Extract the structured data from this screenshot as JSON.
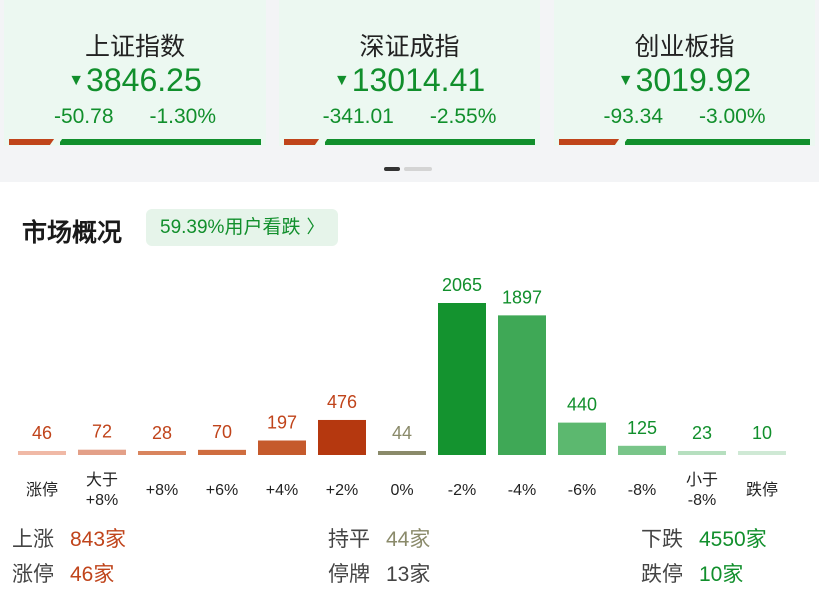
{
  "indices": [
    {
      "name": "上证指数",
      "value": "3846.25",
      "change": "-50.78",
      "pct": "-1.30%",
      "up_share": 0.18
    },
    {
      "name": "深证成指",
      "value": "13014.41",
      "change": "-341.01",
      "pct": "-2.55%",
      "up_share": 0.14
    },
    {
      "name": "创业板指",
      "value": "3019.92",
      "change": "-93.34",
      "pct": "-3.00%",
      "up_share": 0.24
    }
  ],
  "arrow_glyph": "▼",
  "market": {
    "title": "市场概况",
    "sentiment": "59.39%用户看跌",
    "chevron": "〉"
  },
  "chart_data": {
    "type": "bar",
    "categories": [
      "涨停",
      "大于\n+8%",
      "+8%",
      "+6%",
      "+4%",
      "+2%",
      "0%",
      "-2%",
      "-4%",
      "-6%",
      "-8%",
      "小于\n-8%",
      "跌停"
    ],
    "values": [
      46,
      72,
      28,
      70,
      197,
      476,
      44,
      2065,
      1897,
      440,
      125,
      23,
      10
    ],
    "value_labels": [
      "46",
      "72",
      "28",
      "70",
      "197",
      "476",
      "44",
      "2065",
      "1897",
      "440",
      "125",
      "23",
      "10"
    ],
    "bar_colors": [
      "#f0b9a6",
      "#e3a088",
      "#d9855e",
      "#cf6d3f",
      "#c55a2c",
      "#b5380f",
      "#8a8a6a",
      "#14932f",
      "#3fa856",
      "#5cb86f",
      "#79c589",
      "#b6dfbf",
      "#cfe9d5"
    ],
    "label_colors": [
      "#c0441b",
      "#c0441b",
      "#c0441b",
      "#c0441b",
      "#c0441b",
      "#c0441b",
      "#8a8a6a",
      "#118f2c",
      "#118f2c",
      "#118f2c",
      "#118f2c",
      "#118f2c",
      "#118f2c"
    ],
    "ylim": [
      0,
      2065
    ]
  },
  "stats": {
    "up": {
      "label": "上涨",
      "value": "843家"
    },
    "flat": {
      "label": "持平",
      "value": "44家"
    },
    "down": {
      "label": "下跌",
      "value": "4550家"
    },
    "limit_up": {
      "label": "涨停",
      "value": "46家"
    },
    "suspended": {
      "label": "停牌",
      "value": "13家"
    },
    "limit_down": {
      "label": "跌停",
      "value": "10家"
    }
  },
  "colors": {
    "up": "#c0441b",
    "down": "#118f2c",
    "flat": "#8a8a6a"
  }
}
